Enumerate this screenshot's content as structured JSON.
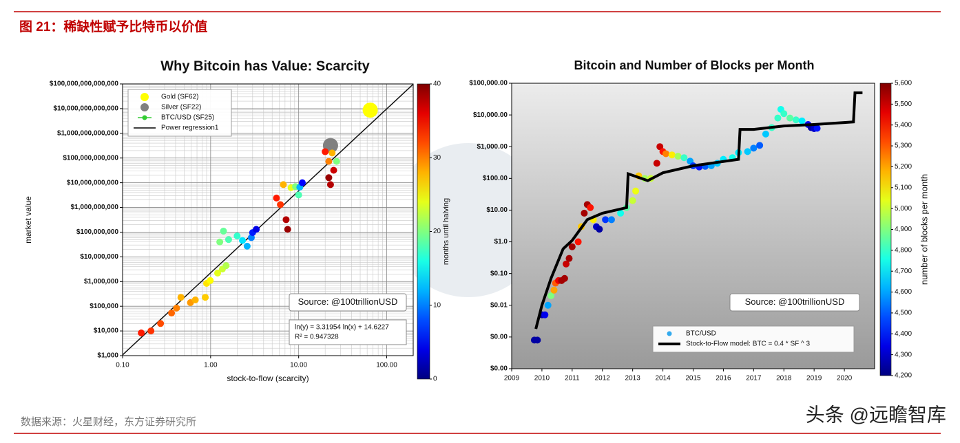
{
  "header": {
    "title": "图 21：稀缺性赋予比特币以价值"
  },
  "chart_data": [
    {
      "type": "scatter",
      "title": "Why Bitcoin has Value: Scarcity",
      "xlabel": "stock-to-flow (scarcity)",
      "ylabel": "market value",
      "x_log": true,
      "y_log": true,
      "grid": true,
      "legend": "upper left",
      "xlim": [
        0.1,
        200
      ],
      "xticks": [
        {
          "value": 0.1,
          "label": "0.10"
        },
        {
          "value": 1,
          "label": "1.00"
        },
        {
          "value": 10,
          "label": "10.00"
        },
        {
          "value": 100,
          "label": "100.00"
        }
      ],
      "ylim": [
        1000,
        100000000000000
      ],
      "yticks": [
        {
          "value": 1000,
          "label": "$1,000"
        },
        {
          "value": 10000,
          "label": "$10,000"
        },
        {
          "value": 100000,
          "label": "$100,000"
        },
        {
          "value": 1000000,
          "label": "$1,000,000"
        },
        {
          "value": 10000000,
          "label": "$10,000,000"
        },
        {
          "value": 100000000,
          "label": "$100,000,000"
        },
        {
          "value": 1000000000,
          "label": "$1,000,000,000"
        },
        {
          "value": 10000000000,
          "label": "$10,000,000,000"
        },
        {
          "value": 100000000000,
          "label": "$100,000,000,000"
        },
        {
          "value": 1000000000000,
          "label": "$1,000,000,000,000"
        },
        {
          "value": 10000000000000,
          "label": "$10,000,000,000,000"
        },
        {
          "value": 100000000000000,
          "label": "$100,000,000,000,000"
        }
      ],
      "colorbar": {
        "label": "months until halving",
        "lim": [
          0,
          40
        ],
        "ticks": [
          0,
          10,
          20,
          30,
          40
        ]
      },
      "series": [
        {
          "name": "Gold (SF62)",
          "color": "#ffff00",
          "x": [
            65
          ],
          "values": [
            8700000000000
          ]
        },
        {
          "name": "Silver (SF22)",
          "color": "#808080",
          "x": [
            23
          ],
          "values": [
            320000000000
          ]
        },
        {
          "name": "BTC/USD (SF25)",
          "color": "#33cc33",
          "x": [
            0.163,
            0.21,
            0.27,
            0.36,
            0.41,
            0.46,
            0.59,
            0.67,
            0.87,
            0.9,
            0.99,
            1.2,
            1.36,
            1.5,
            1.27,
            1.4,
            1.6,
            2.0,
            2.3,
            2.6,
            2.9,
            3.0,
            3.3,
            5.6,
            6.2,
            6.7,
            7.2,
            7.5,
            8.2,
            9.2,
            10.3,
            11,
            10,
            20,
            22,
            22,
            23,
            24,
            27,
            25
          ],
          "values": [
            8300,
            10000,
            20000,
            53000,
            84000,
            230000,
            140000,
            180000,
            230000,
            840000,
            1100000,
            2200000,
            3200000,
            4400000,
            40000000,
            110000000,
            50000000,
            70000000,
            46000000,
            27000000,
            60000000,
            96000000,
            130000000,
            2400000000,
            1300000000,
            8400000000,
            320000000,
            130000000,
            6300000000,
            7000000000,
            6600000000,
            10000000000,
            3200000000,
            180000000000,
            73000000000,
            16000000000,
            8400000000,
            160000000000,
            73000000000,
            32000000000
          ],
          "color_values": [
            34,
            33,
            32,
            31,
            30,
            28,
            29,
            28,
            27,
            26,
            25,
            24,
            23,
            22,
            20,
            19,
            18,
            17,
            14,
            12,
            10,
            6,
            4,
            34,
            33,
            28,
            38,
            39,
            24,
            20,
            12,
            5,
            18,
            34,
            30,
            39,
            38,
            28,
            20,
            37
          ]
        }
      ],
      "regression": {
        "name": "Power regression1",
        "label": "ln(y) = 3.31954 ln(x) + 14.6227",
        "slope": 3.31954,
        "intercept": 14.6227,
        "r2_label": "R² = 0.947328",
        "r2": 0.947328
      },
      "annotations": [
        "Source: @100trillionUSD"
      ]
    },
    {
      "type": "scatter",
      "title": "Bitcoin and Number of Blocks per Month",
      "x_log": false,
      "y_log": true,
      "grid": false,
      "legend": "lower right",
      "xlim": [
        2009,
        2021
      ],
      "xticks": [
        2009,
        2010,
        2011,
        2012,
        2013,
        2014,
        2015,
        2016,
        2017,
        2018,
        2019,
        2020
      ],
      "ylim": [
        0.0001,
        100000
      ],
      "yticks": [
        {
          "value": 0.0001,
          "label": "$0.00"
        },
        {
          "value": 0.001,
          "label": "$0.00"
        },
        {
          "value": 0.01,
          "label": "$0.01"
        },
        {
          "value": 0.1,
          "label": "$0.10"
        },
        {
          "value": 1,
          "label": "$1.0"
        },
        {
          "value": 10,
          "label": "$10.00"
        },
        {
          "value": 100,
          "label": "$100.00"
        },
        {
          "value": 1000,
          "label": "$1,000.00"
        },
        {
          "value": 10000,
          "label": "$10,000.00"
        },
        {
          "value": 100000,
          "label": "$100,000.00"
        }
      ],
      "colorbar": {
        "label": "number of blocks per month",
        "lim": [
          4200,
          5600
        ],
        "ticks": [
          {
            "value": 4200,
            "label": "4,200"
          },
          {
            "value": 4300,
            "label": "4,300"
          },
          {
            "value": 4400,
            "label": "4,400"
          },
          {
            "value": 4500,
            "label": "4,500"
          },
          {
            "value": 4600,
            "label": "4,600"
          },
          {
            "value": 4700,
            "label": "4,700"
          },
          {
            "value": 4800,
            "label": "4,800"
          },
          {
            "value": 4900,
            "label": "4,900"
          },
          {
            "value": 5000,
            "label": "5,000"
          },
          {
            "value": 5100,
            "label": "5,100"
          },
          {
            "value": 5200,
            "label": "5,200"
          },
          {
            "value": 5300,
            "label": "5,300"
          },
          {
            "value": 5400,
            "label": "5,400"
          },
          {
            "value": 5500,
            "label": "5,500"
          },
          {
            "value": 5600,
            "label": "5,600"
          }
        ]
      },
      "series": [
        {
          "name": "BTC/USD",
          "color": "#33aaee",
          "x": [
            2009.75,
            2009.85,
            2010.0,
            2010.1,
            2010.2,
            2010.3,
            2010.4,
            2010.45,
            2010.55,
            2010.65,
            2010.75,
            2010.8,
            2010.9,
            2011.0,
            2011.2,
            2011.3,
            2011.4,
            2011.5,
            2011.6,
            2011.7,
            2011.8,
            2011.9,
            2012.1,
            2012.3,
            2012.6,
            2012.8,
            2013.0,
            2013.1,
            2013.2,
            2013.4,
            2013.6,
            2013.8,
            2013.9,
            2014.0,
            2014.1,
            2014.3,
            2014.5,
            2014.7,
            2014.9,
            2015.0,
            2015.2,
            2015.4,
            2015.6,
            2015.8,
            2016.0,
            2016.3,
            2016.5,
            2016.8,
            2017.0,
            2017.2,
            2017.4,
            2017.6,
            2017.8,
            2017.9,
            2018.0,
            2018.2,
            2018.4,
            2018.6,
            2018.8,
            2018.9,
            2019.0,
            2019.1
          ],
          "values": [
            0.0008,
            0.0008,
            0.005,
            0.005,
            0.01,
            0.02,
            0.03,
            0.05,
            0.06,
            0.06,
            0.07,
            0.2,
            0.3,
            0.7,
            1.0,
            3,
            8,
            15,
            12,
            5,
            3,
            2.5,
            5,
            5,
            8,
            12,
            20,
            40,
            120,
            100,
            100,
            300,
            1000,
            700,
            600,
            550,
            500,
            450,
            350,
            250,
            230,
            240,
            250,
            300,
            400,
            450,
            650,
            700,
            900,
            1100,
            2500,
            4000,
            8000,
            15000,
            11000,
            8000,
            7000,
            6500,
            5000,
            4000,
            3700,
            3800
          ],
          "color_values": [
            4250,
            4250,
            4250,
            4350,
            4600,
            4900,
            5200,
            5300,
            5450,
            5550,
            5550,
            5500,
            5550,
            5550,
            5400,
            5150,
            5550,
            5550,
            5400,
            5100,
            4300,
            4250,
            4450,
            4550,
            4750,
            4850,
            5000,
            5050,
            5150,
            4950,
            5000,
            5500,
            5500,
            5400,
            5250,
            5100,
            4950,
            4800,
            4600,
            4450,
            4400,
            4500,
            4600,
            4650,
            4700,
            4750,
            4700,
            4650,
            4550,
            4500,
            4650,
            4800,
            4800,
            4750,
            4800,
            4850,
            4800,
            4700,
            4350,
            4250,
            4300,
            4400
          ]
        },
        {
          "name": "Stock-to-Flow model: BTC = 0.4 * SF ^ 3",
          "type": "line",
          "color": "#000000",
          "x": [
            2009.8,
            2010.0,
            2010.3,
            2010.7,
            2011.0,
            2011.5,
            2012.0,
            2012.8,
            2012.85,
            2013.5,
            2014.0,
            2015.0,
            2016.5,
            2016.55,
            2017.0,
            2018.0,
            2019.0,
            2020.3,
            2020.35,
            2020.6
          ],
          "values": [
            0.0018,
            0.01,
            0.07,
            0.6,
            1.1,
            5,
            8,
            12,
            140,
            85,
            150,
            250,
            400,
            3500,
            3500,
            4500,
            5000,
            6000,
            50000,
            50000
          ]
        }
      ],
      "annotations": [
        "Source: @100trillionUSD"
      ]
    }
  ],
  "footer": {
    "source": "数据来源：火星财经，东方证券研究所",
    "watermark": "头条 @远瞻智库"
  }
}
